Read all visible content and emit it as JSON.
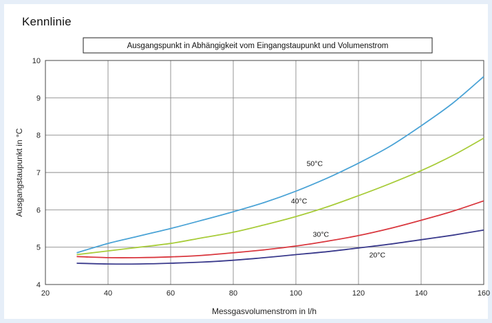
{
  "page": {
    "heading": "Kennlinie"
  },
  "chart_data": {
    "type": "line",
    "title": "Ausgangspunkt in Abhängigkeit vom Eingangstaupunkt und Volumenstrom",
    "xlabel": "Messgasvolumenstrom in l/h",
    "ylabel": "Ausgangstaupunkt in °C",
    "xlim": [
      20,
      160
    ],
    "ylim": [
      4,
      10
    ],
    "x_ticks": [
      20,
      40,
      60,
      80,
      100,
      120,
      140,
      160
    ],
    "y_ticks": [
      4,
      5,
      6,
      7,
      8,
      9,
      10
    ],
    "grid": true,
    "series": [
      {
        "name": "50°C",
        "color": "#4aa3d6",
        "x": [
          30,
          40,
          50,
          60,
          70,
          80,
          90,
          100,
          110,
          120,
          130,
          140,
          150,
          160
        ],
        "y": [
          4.85,
          5.1,
          5.3,
          5.5,
          5.72,
          5.95,
          6.2,
          6.5,
          6.85,
          7.25,
          7.7,
          8.25,
          8.85,
          9.57
        ]
      },
      {
        "name": "40°C",
        "color": "#a8cc3a",
        "x": [
          30,
          40,
          50,
          60,
          70,
          80,
          90,
          100,
          110,
          120,
          130,
          140,
          150,
          160
        ],
        "y": [
          4.8,
          4.9,
          5.0,
          5.1,
          5.25,
          5.4,
          5.6,
          5.82,
          6.08,
          6.38,
          6.7,
          7.05,
          7.45,
          7.92
        ]
      },
      {
        "name": "30°C",
        "color": "#d9373e",
        "x": [
          30,
          40,
          50,
          60,
          70,
          80,
          90,
          100,
          110,
          120,
          130,
          140,
          150,
          160
        ],
        "y": [
          4.75,
          4.72,
          4.72,
          4.74,
          4.78,
          4.85,
          4.93,
          5.03,
          5.16,
          5.31,
          5.5,
          5.72,
          5.96,
          6.24
        ]
      },
      {
        "name": "20°C",
        "color": "#3a3a8c",
        "x": [
          30,
          40,
          50,
          60,
          70,
          80,
          90,
          100,
          110,
          120,
          130,
          140,
          150,
          160
        ],
        "y": [
          4.57,
          4.55,
          4.55,
          4.57,
          4.6,
          4.65,
          4.72,
          4.8,
          4.88,
          4.98,
          5.08,
          5.2,
          5.32,
          5.46
        ]
      }
    ],
    "series_labels": [
      {
        "name": "50°C",
        "x": 106,
        "y": 7.25
      },
      {
        "name": "40°C",
        "x": 101,
        "y": 6.25
      },
      {
        "name": "30°C",
        "x": 108,
        "y": 5.35
      },
      {
        "name": "20°C",
        "x": 126,
        "y": 4.8
      }
    ]
  }
}
